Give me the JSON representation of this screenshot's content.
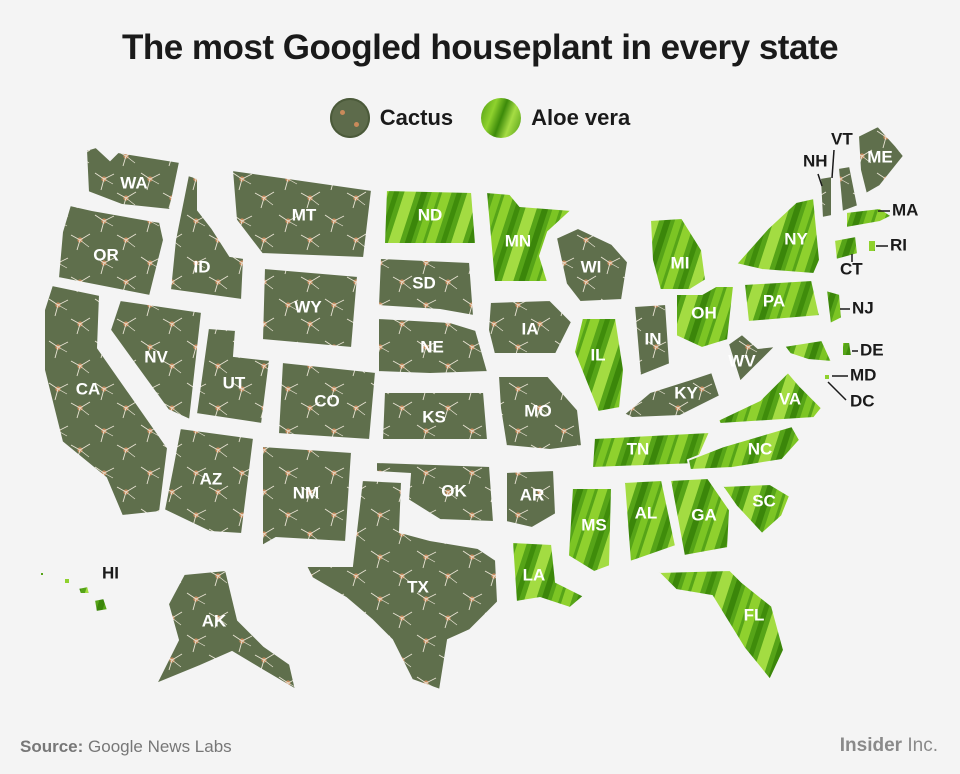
{
  "title": "The most Googled houseplant in every state",
  "legend": [
    {
      "key": "cactus",
      "label": "Cactus",
      "color": "#5d6b4b"
    },
    {
      "key": "aloe",
      "label": "Aloe vera",
      "color": "#5fae1c"
    }
  ],
  "states": [
    {
      "code": "WA",
      "plant": "cactus"
    },
    {
      "code": "OR",
      "plant": "cactus"
    },
    {
      "code": "CA",
      "plant": "cactus"
    },
    {
      "code": "ID",
      "plant": "cactus"
    },
    {
      "code": "NV",
      "plant": "cactus"
    },
    {
      "code": "MT",
      "plant": "cactus"
    },
    {
      "code": "WY",
      "plant": "cactus"
    },
    {
      "code": "UT",
      "plant": "cactus"
    },
    {
      "code": "AZ",
      "plant": "cactus"
    },
    {
      "code": "CO",
      "plant": "cactus"
    },
    {
      "code": "NM",
      "plant": "cactus"
    },
    {
      "code": "ND",
      "plant": "aloe"
    },
    {
      "code": "SD",
      "plant": "cactus"
    },
    {
      "code": "NE",
      "plant": "cactus"
    },
    {
      "code": "KS",
      "plant": "cactus"
    },
    {
      "code": "OK",
      "plant": "cactus"
    },
    {
      "code": "TX",
      "plant": "cactus"
    },
    {
      "code": "MN",
      "plant": "aloe"
    },
    {
      "code": "IA",
      "plant": "cactus"
    },
    {
      "code": "MO",
      "plant": "cactus"
    },
    {
      "code": "AR",
      "plant": "cactus"
    },
    {
      "code": "LA",
      "plant": "aloe"
    },
    {
      "code": "WI",
      "plant": "cactus"
    },
    {
      "code": "IL",
      "plant": "aloe"
    },
    {
      "code": "MI",
      "plant": "aloe"
    },
    {
      "code": "IN",
      "plant": "cactus"
    },
    {
      "code": "OH",
      "plant": "aloe"
    },
    {
      "code": "KY",
      "plant": "cactus"
    },
    {
      "code": "TN",
      "plant": "aloe"
    },
    {
      "code": "MS",
      "plant": "aloe"
    },
    {
      "code": "AL",
      "plant": "aloe"
    },
    {
      "code": "GA",
      "plant": "aloe"
    },
    {
      "code": "FL",
      "plant": "aloe"
    },
    {
      "code": "SC",
      "plant": "aloe"
    },
    {
      "code": "NC",
      "plant": "aloe"
    },
    {
      "code": "VA",
      "plant": "aloe"
    },
    {
      "code": "WV",
      "plant": "cactus"
    },
    {
      "code": "PA",
      "plant": "aloe"
    },
    {
      "code": "NY",
      "plant": "aloe"
    },
    {
      "code": "NJ",
      "plant": "aloe"
    },
    {
      "code": "DE",
      "plant": "aloe"
    },
    {
      "code": "MD",
      "plant": "aloe"
    },
    {
      "code": "DC",
      "plant": "aloe"
    },
    {
      "code": "CT",
      "plant": "aloe"
    },
    {
      "code": "RI",
      "plant": "aloe"
    },
    {
      "code": "MA",
      "plant": "aloe"
    },
    {
      "code": "VT",
      "plant": "cactus"
    },
    {
      "code": "NH",
      "plant": "cactus"
    },
    {
      "code": "ME",
      "plant": "cactus"
    },
    {
      "code": "AK",
      "plant": "cactus"
    },
    {
      "code": "HI",
      "plant": "aloe"
    }
  ],
  "source_label": "Source:",
  "source_text": "Google News Labs",
  "brand_bold": "Insider",
  "brand_rest": "Inc."
}
